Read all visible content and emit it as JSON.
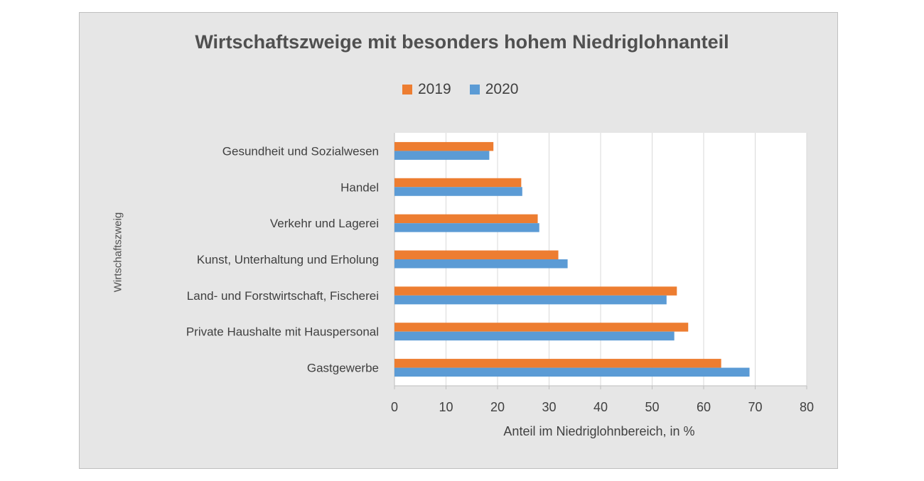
{
  "chart_data": {
    "type": "bar",
    "orientation": "horizontal",
    "title": "Wirtschaftszweige mit besonders hohem Niedriglohnanteil",
    "xlabel": "Anteil im Niedriglohnbereich, in %",
    "ylabel": "Wirtschaftszweig",
    "categories": [
      "Gesundheit und Sozialwesen",
      "Handel",
      "Verkehr und Lagerei",
      "Kunst, Unterhaltung und Erholung",
      "Land- und Forstwirtschaft, Fischerei",
      "Private Haushalte mit Hauspersonal",
      "Gastgewerbe"
    ],
    "series": [
      {
        "name": "2019",
        "color": "#ed7d31",
        "values": [
          19.2,
          24.6,
          27.8,
          31.8,
          54.8,
          57.0,
          63.4
        ]
      },
      {
        "name": "2020",
        "color": "#5b9bd5",
        "values": [
          18.4,
          24.8,
          28.1,
          33.6,
          52.8,
          54.3,
          68.9
        ]
      }
    ],
    "xlim": [
      0,
      80
    ],
    "xticks": [
      "0",
      "10",
      "20",
      "30",
      "40",
      "50",
      "60",
      "70",
      "80"
    ],
    "grid": true,
    "legend_position": "top"
  }
}
